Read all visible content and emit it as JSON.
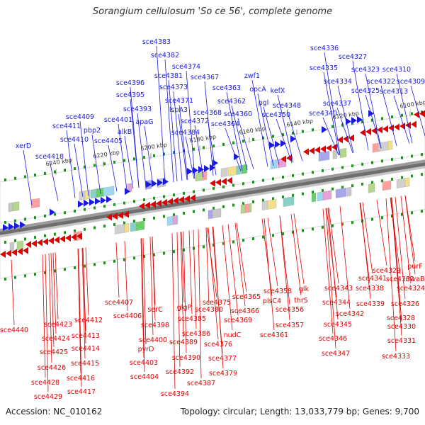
{
  "title": "Sorangium cellulosum 'So ce 56', complete genome",
  "footer": {
    "accession": "Accession: NC_010162",
    "summary": "Topology: circular; Length: 13,033,779 bp; Genes: 9,700"
  },
  "colors": {
    "forward": "#1a1adc",
    "reverse": "#e00000",
    "backbone": "#7a7a7a",
    "tick": "#2a8a2a"
  },
  "scale_labels": [
    "6100 kbp",
    "6120 kbp",
    "6140 kbp",
    "6160 kbp",
    "6180 kbp",
    "6200 kbp",
    "6220 kbp",
    "6240 kbp"
  ],
  "forward_genes": [
    "sce4336",
    "sce4327",
    "sce4335",
    "sce4323",
    "sce4310",
    "sce4334",
    "sce4322",
    "sce4309",
    "sce4325",
    "sce4313",
    "sce4337",
    "sce4340",
    "sce4383",
    "sce4382",
    "sce4374",
    "sce4381",
    "sce4367",
    "sce4373",
    "sce4363",
    "zwf1",
    "opcA",
    "kefX",
    "pgl",
    "sce4348",
    "sce4362",
    "sce4371",
    "sce4396",
    "sce4395",
    "sce4393",
    "lspA3",
    "sce4368",
    "sce4360",
    "sce4350",
    "sce4372",
    "sce4364",
    "sce4401",
    "apaG",
    "sce4409",
    "sce4411",
    "pbp2",
    "alkB",
    "sce4384",
    "sce4410",
    "sce4405",
    "xerD",
    "sce4418"
  ],
  "reverse_genes": [
    "sce4407",
    "sce4406",
    "serC",
    "glgP",
    "sce4375",
    "sce4365",
    "sce4358",
    "plsC4",
    "glk",
    "thrS",
    "sce4341",
    "sce4329",
    "purF",
    "sce4332",
    "mvaB",
    "sce4343",
    "sce4338",
    "sce4324",
    "sce4398",
    "sce4385",
    "sce4380",
    "sce4366",
    "sce4356",
    "sce4344",
    "sce4339",
    "sce4326",
    "sce4342",
    "sce4328",
    "sce4400",
    "sce4386",
    "sce4369",
    "sce4357",
    "sce4330",
    "pyrD",
    "sce4389",
    "sce4376",
    "nudC",
    "sce4361",
    "sce4345",
    "sce4331",
    "sce4390",
    "sce4377",
    "sce4346",
    "sce4403",
    "sce4392",
    "sce4379",
    "sce4347",
    "sce4333",
    "sce4404",
    "sce4387",
    "sce4394",
    "sce4440",
    "sce4423",
    "sce4412",
    "sce4413",
    "sce4424",
    "sce4425",
    "sce4414",
    "sce4426",
    "sce4415",
    "sce4416",
    "sce4428",
    "sce4417",
    "sce4429"
  ]
}
